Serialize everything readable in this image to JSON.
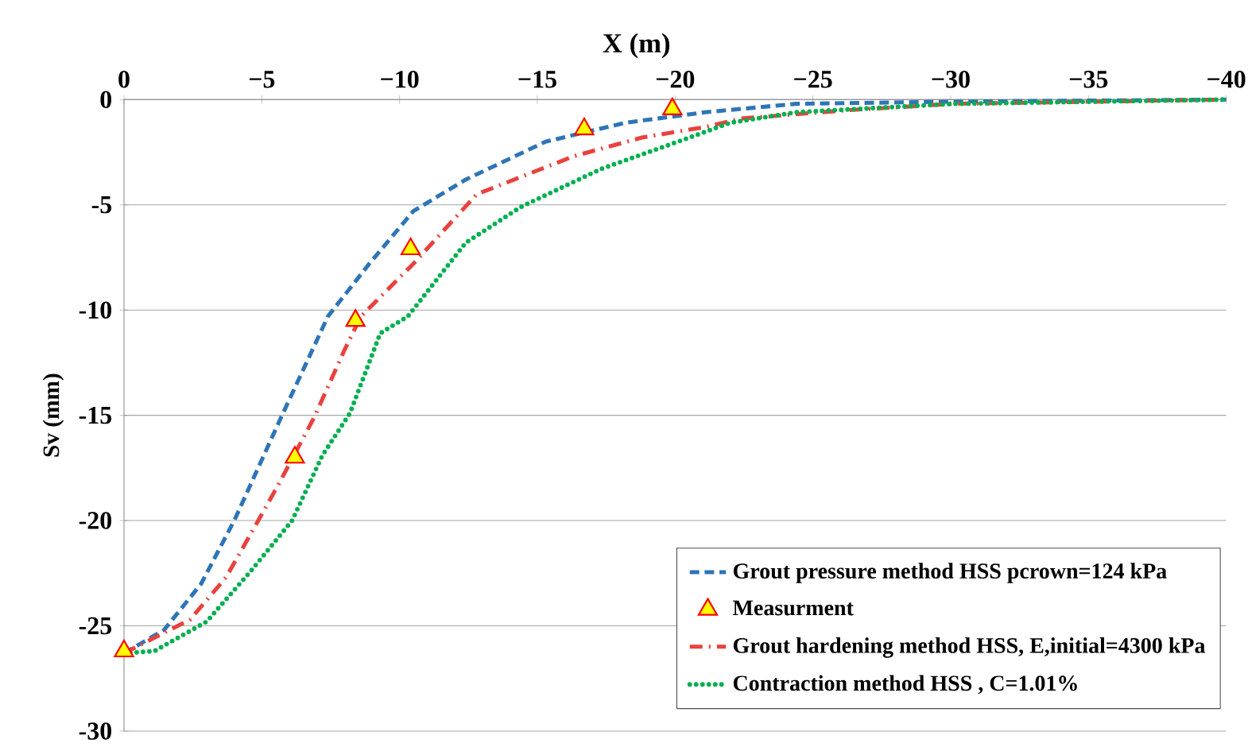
{
  "chart_data": {
    "type": "line",
    "xlabel": "X (m)",
    "ylabel": "Sv (mm)",
    "xlim": [
      0,
      -40
    ],
    "ylim": [
      -30,
      0
    ],
    "xticks": [
      {
        "value": 0,
        "label": "0"
      },
      {
        "value": -5,
        "label": "−5"
      },
      {
        "value": -10,
        "label": "−10"
      },
      {
        "value": -15,
        "label": "−15"
      },
      {
        "value": -20,
        "label": "−20"
      },
      {
        "value": -25,
        "label": "−25"
      },
      {
        "value": -30,
        "label": "−30"
      },
      {
        "value": -35,
        "label": "−35"
      },
      {
        "value": -40,
        "label": "−40"
      }
    ],
    "yticks": [
      0,
      -5,
      -10,
      -15,
      -20,
      -25,
      -30
    ],
    "grid": "y",
    "legend": "bottom right",
    "series": [
      {
        "name": "Grout pressure method HSS pcrown=124 kPa",
        "color": "#2e75b6",
        "line_style": "dashed",
        "x": [
          0,
          -1.45,
          -2.8,
          -4.0,
          -5.7,
          -7.4,
          -8.9,
          -10.5,
          -12.4,
          -15.3,
          -18.2,
          -21.1,
          -24.4,
          -30,
          -40
        ],
        "values": [
          -26.3,
          -25.2,
          -23.0,
          -20.0,
          -15.1,
          -10.3,
          -7.8,
          -5.3,
          -3.8,
          -2.0,
          -1.1,
          -0.6,
          -0.2,
          -0.1,
          0
        ]
      },
      {
        "name": "Measurment",
        "type": "scatter",
        "marker": "triangle",
        "color": "#ffff00",
        "x": [
          0,
          -6.2,
          -8.4,
          -10.4,
          -16.7,
          -19.9
        ],
        "values": [
          -26.2,
          -17.0,
          -10.5,
          -7.1,
          -1.4,
          -0.45
        ]
      },
      {
        "name": "Grout hardening method HSS, E,initial=4300 kPa",
        "color": "#e8423e",
        "line_style": "dashdot",
        "x": [
          0,
          -2.4,
          -3.7,
          -4.7,
          -5.6,
          -6.9,
          -8.0,
          -8.6,
          -10.5,
          -12.8,
          -16.3,
          -18.8,
          -21.1,
          -22.4,
          -26.3,
          -30.1,
          -40
        ],
        "values": [
          -26.3,
          -24.7,
          -22.7,
          -20.4,
          -18.3,
          -15.1,
          -11.9,
          -10.3,
          -7.8,
          -4.5,
          -2.7,
          -1.8,
          -1.3,
          -0.9,
          -0.5,
          -0.2,
          0
        ]
      },
      {
        "name": "Contraction method HSS , C=1.01%",
        "color": "#00b050",
        "line_style": "dotted",
        "x": [
          0,
          -1.1,
          -3.0,
          -4.6,
          -6.1,
          -7.2,
          -8.2,
          -9.3,
          -10.3,
          -12.4,
          -14.4,
          -17.3,
          -20.1,
          -22.0,
          -24.4,
          -30.1,
          -40
        ],
        "values": [
          -26.3,
          -26.2,
          -24.8,
          -22.4,
          -20.0,
          -16.9,
          -14.9,
          -11.1,
          -10.3,
          -6.8,
          -5.1,
          -3.3,
          -2.0,
          -1.1,
          -0.6,
          -0.2,
          0
        ]
      }
    ]
  }
}
